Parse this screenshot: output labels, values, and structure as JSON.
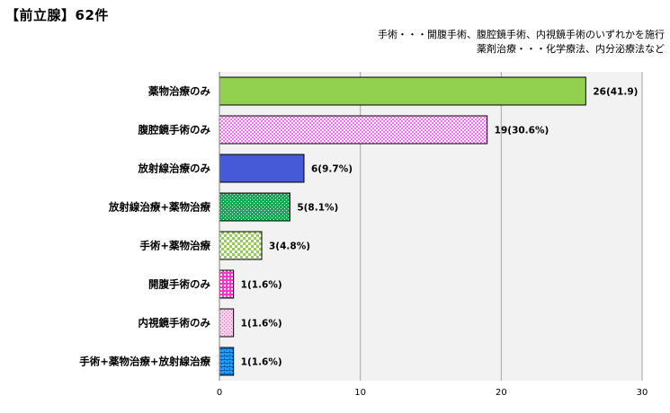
{
  "header": {
    "title": "【前立腺】62件",
    "note_line1": "手術・・・開腹手術、腹腔鏡手術、内視鏡手術のいずれかを施行",
    "note_line2": "薬剤治療・・・化学療法、内分泌療法など"
  },
  "chart_data": {
    "type": "bar",
    "orientation": "horizontal",
    "categories": [
      "薬物治療のみ",
      "腹腔鏡手術のみ",
      "放射線治療のみ",
      "放射線治療+薬物治療",
      "手術+薬物治療",
      "開腹手術のみ",
      "内視鏡手術のみ",
      "手術+薬物治療+放射線治療"
    ],
    "values": [
      26,
      19,
      6,
      5,
      3,
      1,
      1,
      1
    ],
    "data_labels": [
      "26(41.9)",
      "19(30.6%)",
      "6(9.7%)",
      "5(8.1%)",
      "3(4.8%)",
      "1(1.6%)",
      "1(1.6%)",
      "1(1.6%)"
    ],
    "colors": [
      "#92d050",
      "#ff66ff",
      "#4659d6",
      "#00b050",
      "#92d050",
      "#ff33cc",
      "#ff99cc",
      "#1fa0ff"
    ],
    "patterns": [
      "solid",
      "dots",
      "solid",
      "dots",
      "checker",
      "grid",
      "dots",
      "brick"
    ],
    "xlim": [
      0,
      30
    ],
    "xticks": [
      0,
      10,
      20,
      30
    ],
    "grid": true,
    "legend": "none"
  }
}
